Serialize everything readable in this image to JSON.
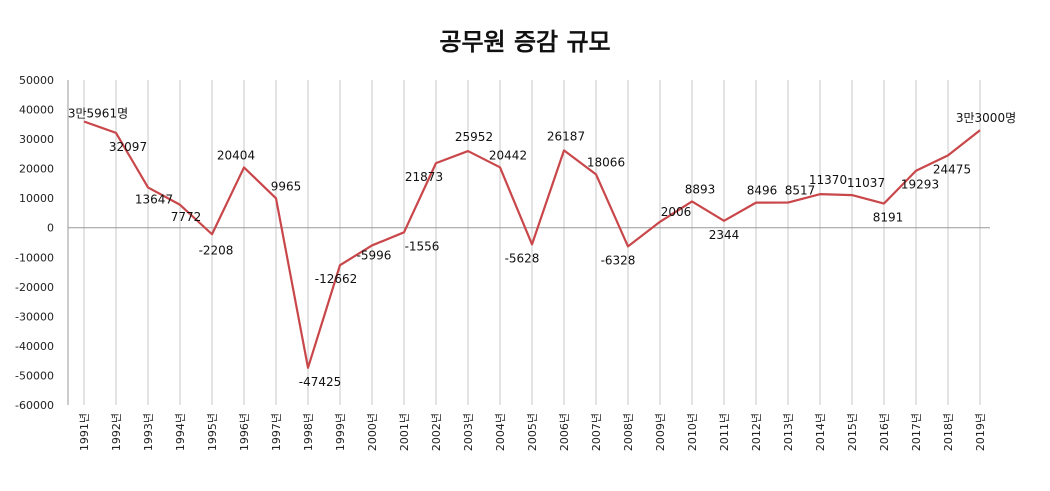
{
  "chart_data": {
    "type": "line",
    "title": "공무원 증감 규모",
    "xlabel": "",
    "ylabel": "",
    "ylim": [
      -60000,
      50000
    ],
    "yticks": [
      50000,
      40000,
      30000,
      20000,
      10000,
      0,
      -10000,
      -20000,
      -30000,
      -40000,
      -50000,
      -60000
    ],
    "grid": "vertical",
    "line_color": "#c9474a",
    "categories": [
      "1991년",
      "1992년",
      "1993년",
      "1994년",
      "1995년",
      "1996년",
      "1997년",
      "1998년",
      "1999년",
      "2000년",
      "2001년",
      "2002년",
      "2003년",
      "2004년",
      "2005년",
      "2006년",
      "2007년",
      "2008년",
      "2009년",
      "2010년",
      "2011년",
      "2012년",
      "2013년",
      "2014년",
      "2015년",
      "2016년",
      "2017년",
      "2018년",
      "2019년"
    ],
    "values": [
      35961,
      32097,
      13647,
      7772,
      -2208,
      20404,
      9965,
      -47425,
      -12662,
      -5996,
      -1556,
      21873,
      25952,
      20442,
      -5628,
      26187,
      18066,
      -6328,
      2006,
      8893,
      2344,
      8496,
      8517,
      11370,
      11037,
      8191,
      19293,
      24475,
      33000
    ],
    "data_labels": [
      "3만5961명",
      "32097",
      "13647",
      "7772",
      "-2208",
      "20404",
      "9965",
      "-47425",
      "-12662",
      "-5996",
      "-1556",
      "21873",
      "25952",
      "20442",
      "-5628",
      "26187",
      "18066",
      "-6328",
      "2006",
      "8893",
      "2344",
      "8496",
      "8517",
      "11370",
      "11037",
      "8191",
      "19293",
      "24475",
      "3만3000명"
    ]
  }
}
